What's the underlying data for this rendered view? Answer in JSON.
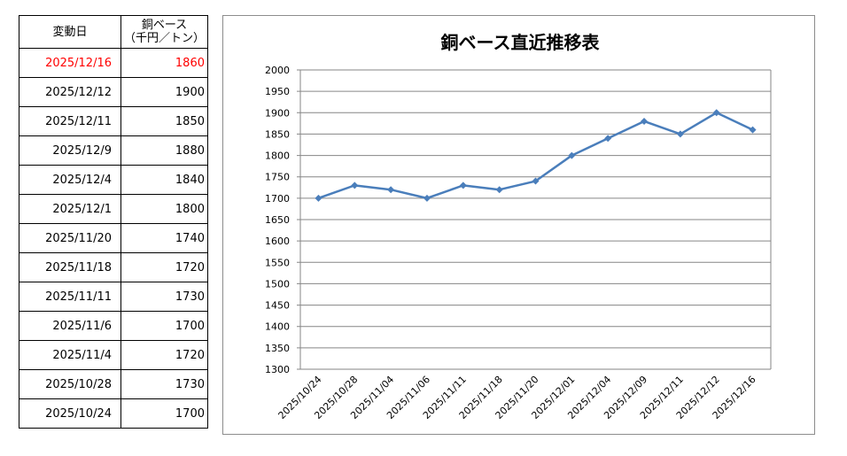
{
  "table": {
    "header_date": "変動日",
    "header_price_line1": "銅ベース",
    "header_price_line2": "（千円／トン）",
    "rows": [
      {
        "date": "2025/12/16",
        "price": "1860"
      },
      {
        "date": "2025/12/12",
        "price": "1900"
      },
      {
        "date": "2025/12/11",
        "price": "1850"
      },
      {
        "date": "2025/12/9",
        "price": "1880"
      },
      {
        "date": "2025/12/4",
        "price": "1840"
      },
      {
        "date": "2025/12/1",
        "price": "1800"
      },
      {
        "date": "2025/11/20",
        "price": "1740"
      },
      {
        "date": "2025/11/18",
        "price": "1720"
      },
      {
        "date": "2025/11/11",
        "price": "1730"
      },
      {
        "date": "2025/11/6",
        "price": "1700"
      },
      {
        "date": "2025/11/4",
        "price": "1720"
      },
      {
        "date": "2025/10/28",
        "price": "1730"
      },
      {
        "date": "2025/10/24",
        "price": "1700"
      }
    ],
    "highlight_color": "#ff0000"
  },
  "chart_data": {
    "type": "line",
    "title": "銅ベース直近推移表",
    "xlabel": "",
    "ylabel": "",
    "ylim": [
      1300,
      2000
    ],
    "y_ticks": [
      2000,
      1950,
      1900,
      1850,
      1800,
      1750,
      1700,
      1650,
      1600,
      1550,
      1500,
      1450,
      1400,
      1350,
      1300
    ],
    "grid": true,
    "legend": "none",
    "line_color": "#4a7ebb",
    "x": [
      "2025/10/24",
      "2025/10/28",
      "2025/11/04",
      "2025/11/06",
      "2025/11/11",
      "2025/11/18",
      "2025/11/20",
      "2025/12/01",
      "2025/12/04",
      "2025/12/09",
      "2025/12/11",
      "2025/12/12",
      "2025/12/16"
    ],
    "series": [
      {
        "values": [
          1700,
          1730,
          1720,
          1700,
          1730,
          1720,
          1740,
          1800,
          1840,
          1880,
          1850,
          1900,
          1860
        ]
      }
    ]
  }
}
